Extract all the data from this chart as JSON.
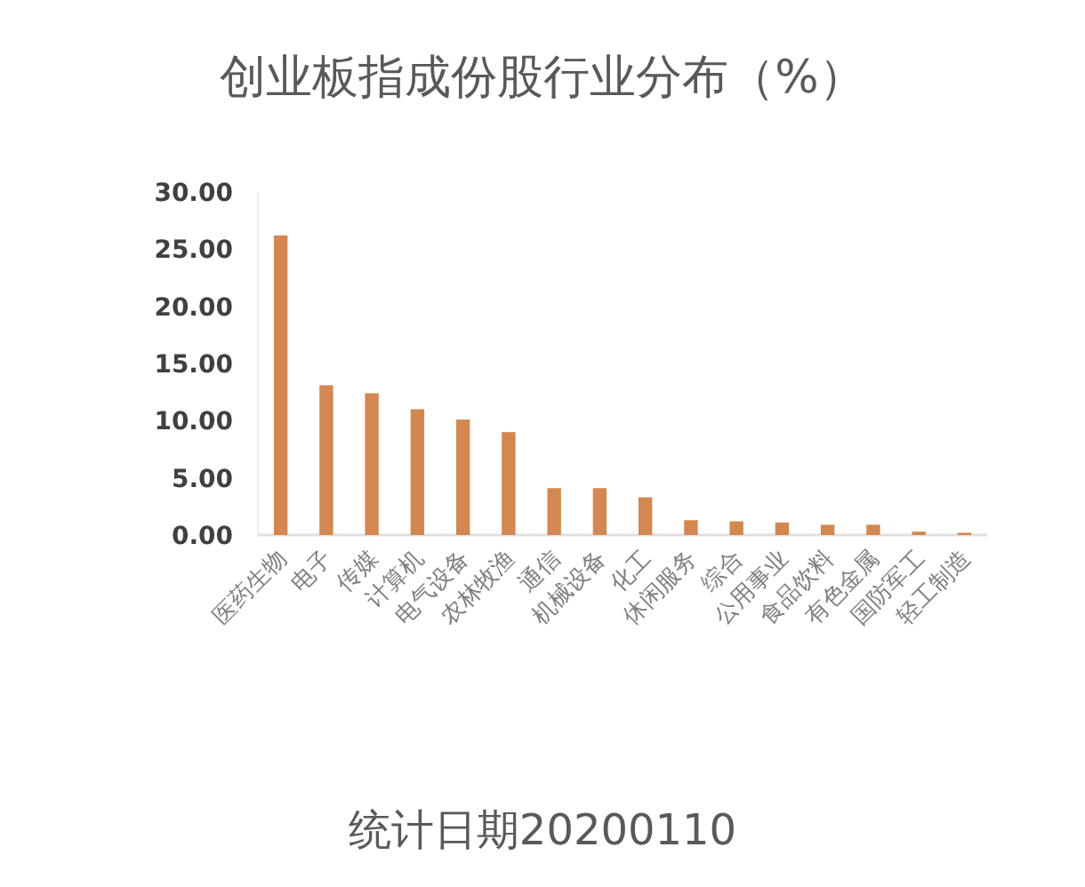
{
  "chart_data": {
    "type": "bar",
    "title": "创业板指成份股行业分布（%）",
    "categories": [
      "医药生物",
      "电子",
      "传媒",
      "计算机",
      "电气设备",
      "农林牧渔",
      "通信",
      "机械设备",
      "化工",
      "休闲服务",
      "综合",
      "公用事业",
      "食品饮料",
      "有色金属",
      "国防军工",
      "轻工制造"
    ],
    "values": [
      26.2,
      13.1,
      12.4,
      11.0,
      10.1,
      9.0,
      4.1,
      4.1,
      3.3,
      1.3,
      1.2,
      1.1,
      0.9,
      0.9,
      0.3,
      0.2
    ],
    "color": "#d4874f",
    "ylim": [
      0,
      30
    ],
    "yticks": [
      {
        "value": 0,
        "label": "0.00"
      },
      {
        "value": 5,
        "label": "5.00"
      },
      {
        "value": 10,
        "label": "10.00"
      },
      {
        "value": 15,
        "label": "15.00"
      },
      {
        "value": 20,
        "label": "20.00"
      },
      {
        "value": 25,
        "label": "25.00"
      },
      {
        "value": 30,
        "label": "30.00"
      }
    ],
    "grid": false,
    "annotations": [
      "统计日期20200110"
    ]
  }
}
